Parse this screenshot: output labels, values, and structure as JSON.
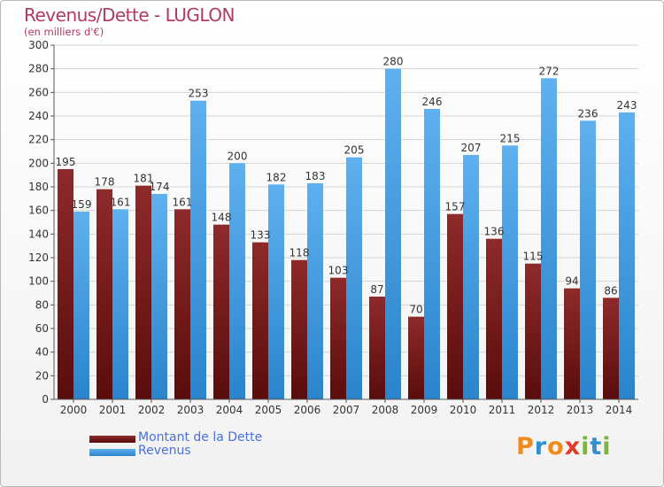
{
  "title": "Revenus/Dette - LUGLON",
  "subtitle": "(en milliers d'€)",
  "logo": {
    "text": "Proxiti",
    "letters": [
      "P",
      "r",
      "o",
      "x",
      "i",
      "t",
      "i"
    ],
    "colors": [
      "#f08a1c",
      "#2f8fd0",
      "#f08a1c",
      "#e23b2a",
      "#7cb342",
      "#2f8fd0",
      "#7cb342"
    ]
  },
  "chart_data": {
    "type": "bar",
    "categories": [
      "2000",
      "2001",
      "2002",
      "2003",
      "2004",
      "2005",
      "2006",
      "2007",
      "2008",
      "2009",
      "2010",
      "2011",
      "2012",
      "2013",
      "2014"
    ],
    "series": [
      {
        "name": "Montant de la Dette",
        "color": "#7a1d1d",
        "values": [
          195,
          178,
          181,
          161,
          148,
          133,
          118,
          103,
          87,
          70,
          157,
          136,
          115,
          94,
          86
        ]
      },
      {
        "name": "Revenus",
        "color": "#3d9be3",
        "values": [
          159,
          161,
          174,
          253,
          200,
          182,
          183,
          205,
          280,
          246,
          207,
          215,
          272,
          236,
          243
        ]
      }
    ],
    "ylim": [
      0,
      300
    ],
    "yticks": [
      0,
      20,
      40,
      60,
      80,
      100,
      120,
      140,
      160,
      180,
      200,
      220,
      240,
      260,
      280,
      300
    ],
    "grid": true,
    "legend_position": "bottom-left"
  }
}
